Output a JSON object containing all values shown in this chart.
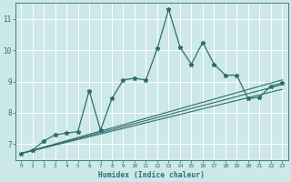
{
  "xlabel": "Humidex (Indice chaleur)",
  "bg_color": "#cde8e8",
  "grid_color": "#ffffff",
  "line_color": "#2d6e6e",
  "xlim": [
    -0.5,
    23.5
  ],
  "ylim": [
    6.5,
    11.5
  ],
  "yticks": [
    7,
    8,
    9,
    10,
    11
  ],
  "xtick_labels": [
    "0",
    "1",
    "2",
    "3",
    "4",
    "5",
    "6",
    "7",
    "8",
    "9",
    "10",
    "11",
    "12",
    "13",
    "14",
    "15",
    "16",
    "17",
    "18",
    "19",
    "20",
    "21",
    "22",
    "23"
  ],
  "main_series": {
    "x": [
      0,
      1,
      2,
      3,
      4,
      5,
      6,
      7,
      8,
      9,
      10,
      11,
      12,
      13,
      14,
      15,
      16,
      17,
      18,
      19,
      20,
      21,
      22,
      23
    ],
    "y": [
      6.7,
      6.8,
      7.1,
      7.3,
      7.35,
      7.4,
      8.7,
      7.45,
      8.45,
      9.05,
      9.1,
      9.05,
      10.05,
      11.3,
      10.1,
      9.55,
      10.25,
      9.55,
      9.2,
      9.2,
      8.45,
      8.5,
      8.85,
      8.95
    ]
  },
  "reg_lines": [
    {
      "x": [
        0,
        23
      ],
      "y": [
        6.7,
        9.05
      ]
    },
    {
      "x": [
        0,
        23
      ],
      "y": [
        6.7,
        8.9
      ]
    },
    {
      "x": [
        0,
        23
      ],
      "y": [
        6.7,
        8.75
      ]
    }
  ],
  "marker": "*",
  "markersize": 3.5,
  "main_linewidth": 0.9,
  "reg_linewidth": 0.8
}
